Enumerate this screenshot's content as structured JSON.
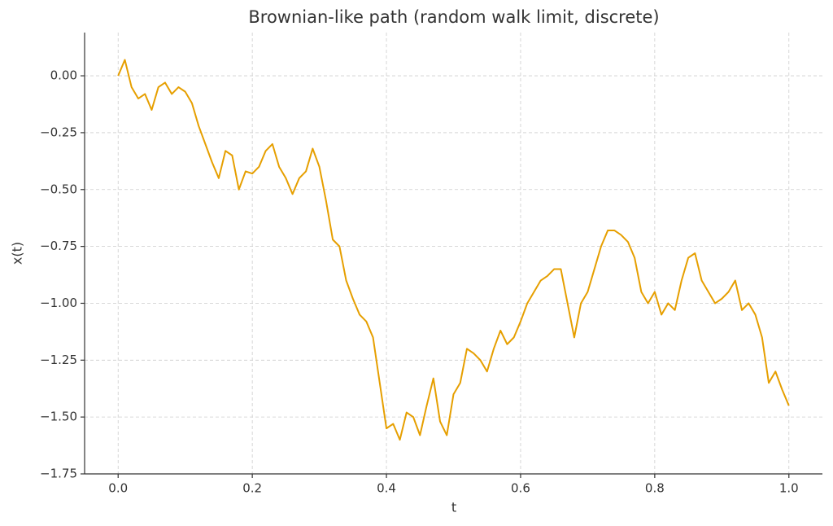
{
  "chart_data": {
    "type": "line",
    "title": "Brownian-like path (random walk limit, discrete)",
    "xlabel": "t",
    "ylabel": "x(t)",
    "x": [
      0,
      0.01,
      0.02,
      0.03,
      0.04,
      0.05,
      0.06,
      0.07,
      0.08,
      0.09,
      0.1,
      0.11,
      0.12,
      0.13,
      0.14,
      0.15,
      0.16,
      0.17,
      0.18,
      0.19,
      0.2,
      0.21,
      0.22,
      0.23,
      0.24,
      0.25,
      0.26,
      0.27,
      0.28,
      0.29,
      0.3,
      0.31,
      0.32,
      0.33,
      0.34,
      0.35,
      0.36,
      0.37,
      0.38,
      0.39,
      0.4,
      0.41,
      0.42,
      0.43,
      0.44,
      0.45,
      0.46,
      0.47,
      0.48,
      0.49,
      0.5,
      0.51,
      0.52,
      0.53,
      0.54,
      0.55,
      0.56,
      0.57,
      0.58,
      0.59,
      0.6,
      0.61,
      0.62,
      0.63,
      0.64,
      0.65,
      0.66,
      0.67,
      0.68,
      0.69,
      0.7,
      0.71,
      0.72,
      0.73,
      0.74,
      0.75,
      0.76,
      0.77,
      0.78,
      0.79,
      0.8,
      0.81,
      0.82,
      0.83,
      0.84,
      0.85,
      0.86,
      0.87,
      0.88,
      0.89,
      0.9,
      0.91,
      0.92,
      0.93,
      0.94,
      0.95,
      0.96,
      0.97,
      0.98,
      0.99,
      1
    ],
    "series": [
      {
        "name": "x(t)",
        "color": "#e69f00",
        "values": [
          0,
          0.07,
          -0.05,
          -0.1,
          -0.08,
          -0.15,
          -0.05,
          -0.03,
          -0.08,
          -0.05,
          -0.07,
          -0.12,
          -0.22,
          -0.3,
          -0.38,
          -0.45,
          -0.33,
          -0.35,
          -0.5,
          -0.42,
          -0.43,
          -0.4,
          -0.33,
          -0.3,
          -0.4,
          -0.45,
          -0.52,
          -0.45,
          -0.42,
          -0.32,
          -0.4,
          -0.55,
          -0.72,
          -0.75,
          -0.9,
          -0.98,
          -1.05,
          -1.08,
          -1.15,
          -1.35,
          -1.55,
          -1.53,
          -1.6,
          -1.48,
          -1.5,
          -1.58,
          -1.45,
          -1.33,
          -1.52,
          -1.58,
          -1.4,
          -1.35,
          -1.2,
          -1.22,
          -1.25,
          -1.3,
          -1.2,
          -1.12,
          -1.18,
          -1.15,
          -1.08,
          -1,
          -0.95,
          -0.9,
          -0.88,
          -0.85,
          -0.85,
          -1,
          -1.15,
          -1,
          -0.95,
          -0.85,
          -0.75,
          -0.68,
          -0.68,
          -0.7,
          -0.73,
          -0.8,
          -0.95,
          -1,
          -0.95,
          -1.05,
          -1,
          -1.03,
          -0.9,
          -0.8,
          -0.78,
          -0.9,
          -0.95,
          -1,
          -0.98,
          -0.95,
          -0.9,
          -1.03,
          -1,
          -1.05,
          -1.15,
          -1.35,
          -1.3,
          -1.38,
          -1.45
        ]
      }
    ],
    "xlim": [
      -0.05,
      1.05
    ],
    "ylim": [
      -1.75,
      0.19
    ],
    "xticks": [
      {
        "value": 0,
        "label": "0.0"
      },
      {
        "value": 0.2,
        "label": "0.2"
      },
      {
        "value": 0.4,
        "label": "0.4"
      },
      {
        "value": 0.6,
        "label": "0.6"
      },
      {
        "value": 0.8,
        "label": "0.8"
      },
      {
        "value": 1,
        "label": "1.0"
      }
    ],
    "yticks": [
      {
        "value": 0,
        "label": "0.00"
      },
      {
        "value": -0.25,
        "label": "−0.25"
      },
      {
        "value": -0.5,
        "label": "−0.50"
      },
      {
        "value": -0.75,
        "label": "−0.75"
      },
      {
        "value": -1,
        "label": "−1.00"
      },
      {
        "value": -1.25,
        "label": "−1.25"
      },
      {
        "value": -1.5,
        "label": "−1.50"
      },
      {
        "value": -1.75,
        "label": "−1.75"
      }
    ],
    "grid": true
  }
}
